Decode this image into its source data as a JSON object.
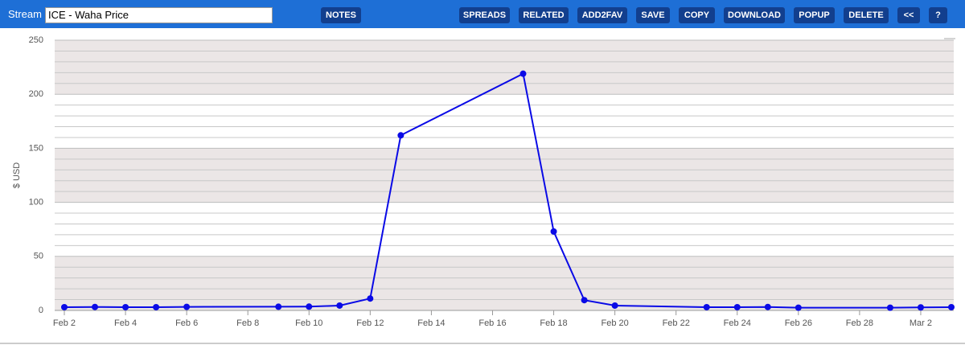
{
  "toolbar": {
    "stream_label": "Stream",
    "stream_name": "ICE - Waha Price",
    "buttons": [
      "NOTES",
      "SPREADS",
      "RELATED",
      "ADD2FAV",
      "SAVE",
      "COPY",
      "DOWNLOAD",
      "POPUP",
      "DELETE",
      "<<",
      "?"
    ]
  },
  "chart_data": {
    "type": "line",
    "y_label": "$ USD",
    "x": [
      "Feb 2",
      "Feb 3",
      "Feb 4",
      "Feb 5",
      "Feb 6",
      "Feb 9",
      "Feb 10",
      "Feb 11",
      "Feb 12",
      "Feb 13",
      "Feb 17",
      "Feb 18",
      "Feb 19",
      "Feb 20",
      "Feb 23",
      "Feb 24",
      "Feb 25",
      "Feb 26",
      "Mar 1",
      "Mar 2",
      "Mar 3"
    ],
    "series": [
      {
        "name": "ICE - Waha Price",
        "color": "#0a0ae6",
        "values": [
          3,
          3.2,
          3,
          3,
          3.3,
          3.4,
          3.5,
          4.5,
          11,
          162,
          219,
          73,
          9.5,
          4.5,
          3,
          3,
          3.2,
          2.5,
          2.5,
          2.8,
          3
        ]
      }
    ],
    "xlim": [
      "Feb 2",
      "Mar 3"
    ],
    "xticks": [
      "Feb 2",
      "Feb 4",
      "Feb 6",
      "Feb 8",
      "Feb 10",
      "Feb 12",
      "Feb 14",
      "Feb 16",
      "Feb 18",
      "Feb 20",
      "Feb 22",
      "Feb 24",
      "Feb 26",
      "Feb 28",
      "Mar 2"
    ],
    "ylim": [
      0,
      250
    ],
    "yticks": [
      0,
      50,
      100,
      150,
      200,
      250
    ],
    "minor_yticks": [
      10,
      20,
      30,
      40,
      60,
      70,
      80,
      90,
      110,
      120,
      130,
      140,
      160,
      170,
      180,
      190,
      210,
      220,
      230,
      240
    ],
    "grid": true
  }
}
